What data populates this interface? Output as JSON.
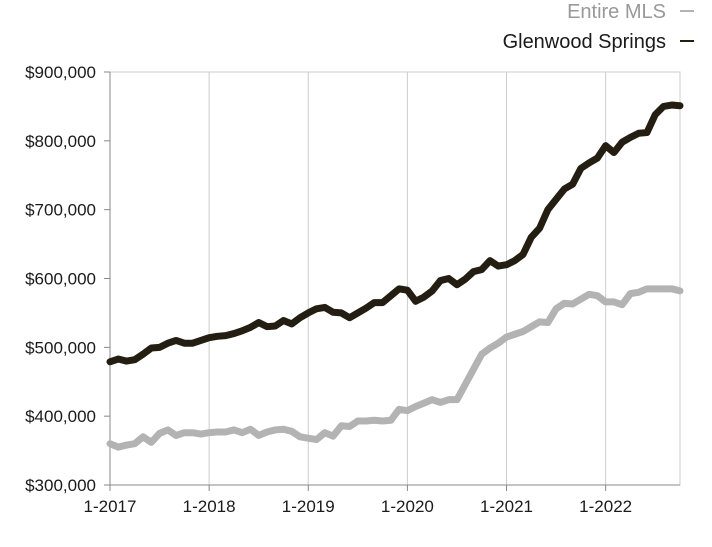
{
  "chart_data": {
    "type": "line",
    "x_start": "2017-01",
    "x_interval": "month",
    "xticks": [
      "1-2017",
      "1-2018",
      "1-2019",
      "1-2020",
      "1-2021",
      "1-2022"
    ],
    "yticks": [
      "$300,000",
      "$400,000",
      "$500,000",
      "$600,000",
      "$700,000",
      "$800,000",
      "$900,000"
    ],
    "ylim": [
      300000,
      900000
    ],
    "xlim": [
      "2017-01",
      "2022-10"
    ],
    "grid": "vertical",
    "legend_position": "top-right",
    "series": [
      {
        "name": "Entire MLS",
        "color": "#b3b3b3",
        "values": [
          360000,
          355000,
          358000,
          360000,
          370000,
          362000,
          375000,
          380000,
          372000,
          376000,
          376000,
          374000,
          376000,
          377000,
          377000,
          380000,
          376000,
          381000,
          372000,
          377000,
          380000,
          381000,
          378000,
          370000,
          368000,
          366000,
          376000,
          371000,
          386000,
          385000,
          393000,
          393000,
          394000,
          393000,
          394000,
          410000,
          408000,
          414000,
          419000,
          424000,
          420000,
          424000,
          424000,
          446000,
          468000,
          490000,
          499000,
          506000,
          515000,
          519000,
          523000,
          530000,
          537000,
          536000,
          556000,
          564000,
          563000,
          570000,
          577000,
          575000,
          566000,
          566000,
          562000,
          578000,
          580000,
          585000,
          585000,
          585000,
          585000,
          582000
        ]
      },
      {
        "name": "Glenwood Springs",
        "color": "#231d12",
        "values": [
          479000,
          483000,
          480000,
          482000,
          490000,
          499000,
          500000,
          506000,
          510000,
          506000,
          506000,
          510000,
          514000,
          516000,
          517000,
          520000,
          524000,
          529000,
          536000,
          530000,
          531000,
          539000,
          534000,
          543000,
          550000,
          556000,
          558000,
          551000,
          550000,
          543000,
          550000,
          557000,
          565000,
          565000,
          575000,
          585000,
          583000,
          567000,
          573000,
          582000,
          597000,
          600000,
          591000,
          599000,
          610000,
          613000,
          626000,
          618000,
          620000,
          626000,
          635000,
          660000,
          673000,
          700000,
          715000,
          730000,
          737000,
          760000,
          768000,
          775000,
          793000,
          783000,
          798000,
          805000,
          811000,
          812000,
          838000,
          850000,
          852000,
          851000
        ]
      }
    ]
  }
}
